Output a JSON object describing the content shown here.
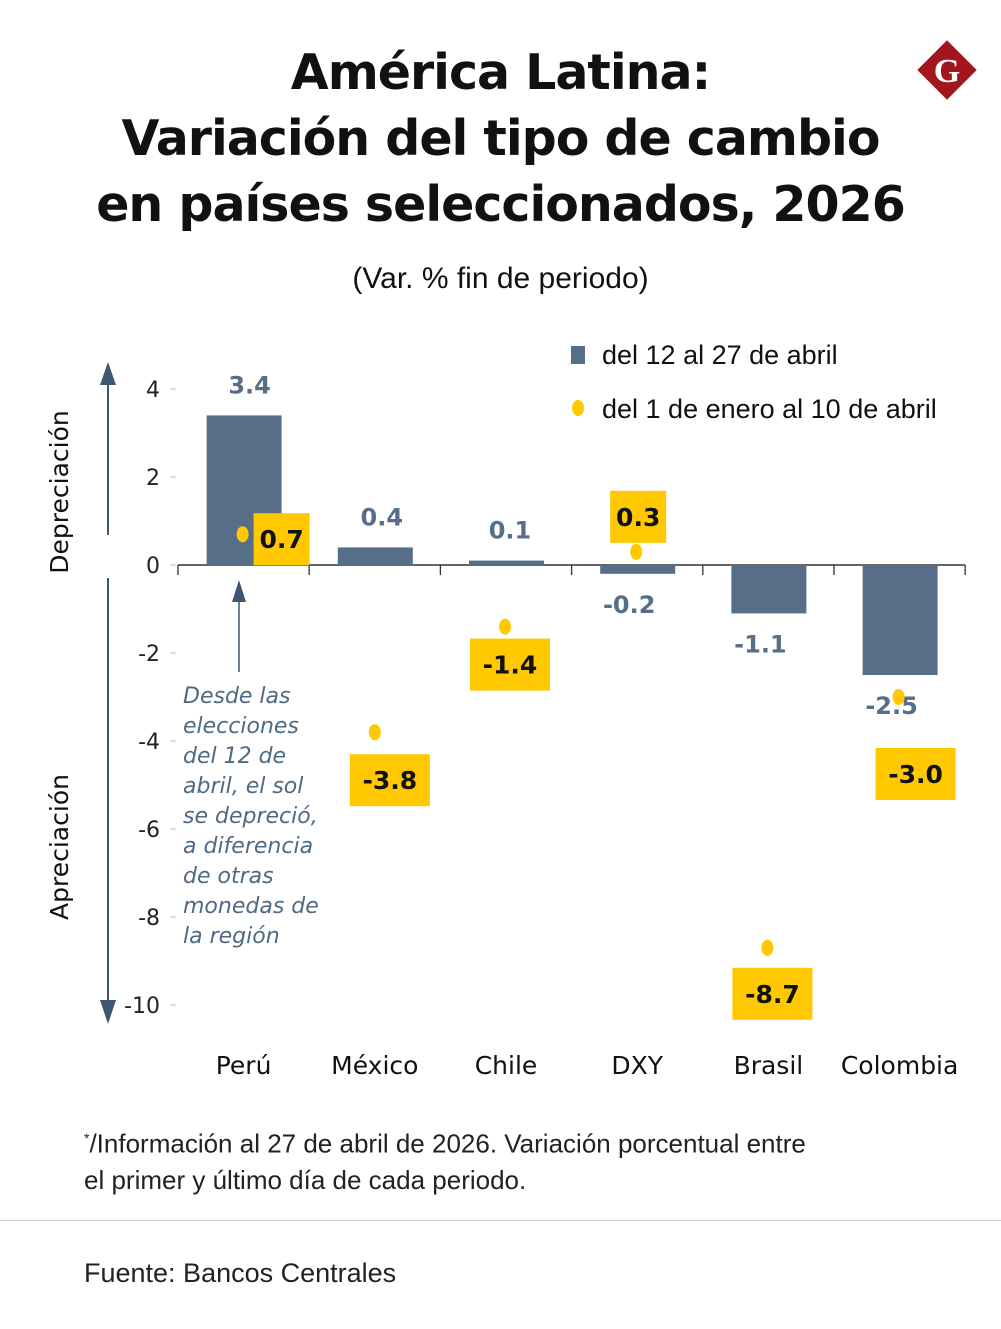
{
  "title_lines": [
    "América Latina:",
    "Variación del tipo de cambio",
    "en países seleccionados, 2026"
  ],
  "subtitle": "(Var. % fin de periodo)",
  "logo_letter": "G",
  "colors": {
    "bar": "#566e87",
    "dot": "#ffc800",
    "logo": "#a3151f",
    "annotation": "#4f6a85"
  },
  "chart_data": {
    "type": "bar",
    "categories": [
      "Perú",
      "México",
      "Chile",
      "DXY",
      "Brasil",
      "Colombia"
    ],
    "series": [
      {
        "name": "del 12 al 27 de abril",
        "kind": "bar",
        "values": [
          3.4,
          0.4,
          0.1,
          -0.2,
          -1.1,
          -2.5
        ],
        "labels": [
          "3.4",
          "0.4",
          "0.1",
          "-0.2",
          "-1.1",
          "-2.5"
        ]
      },
      {
        "name": "del 1 de enero al 10 de abril",
        "kind": "dot",
        "values": [
          0.7,
          -3.8,
          -1.4,
          0.3,
          -8.7,
          -3.0
        ],
        "labels": [
          "0.7",
          "-3.8",
          "-1.4",
          "0.3",
          "-8.7",
          "-3.0"
        ]
      }
    ],
    "yticks": [
      4,
      2,
      0,
      -2,
      -4,
      -6,
      -8,
      -10
    ],
    "ylim": [
      -10,
      4
    ],
    "y_axis_up_label": "Depreciación",
    "y_axis_down_label": "Apreciación",
    "legend_position": "top-right"
  },
  "annotation_lines": [
    "Desde las",
    "elecciones",
    "del 12 de",
    "abril, el sol",
    "se depreció,",
    "a diferencia",
    "de otras",
    "monedas de",
    "la región"
  ],
  "note_mark": "*",
  "note_lines": [
    "/Información al 27 de abril de 2026. Variación porcentual entre",
    "el primer y último día de cada periodo."
  ],
  "source": "Fuente:  Bancos Centrales"
}
